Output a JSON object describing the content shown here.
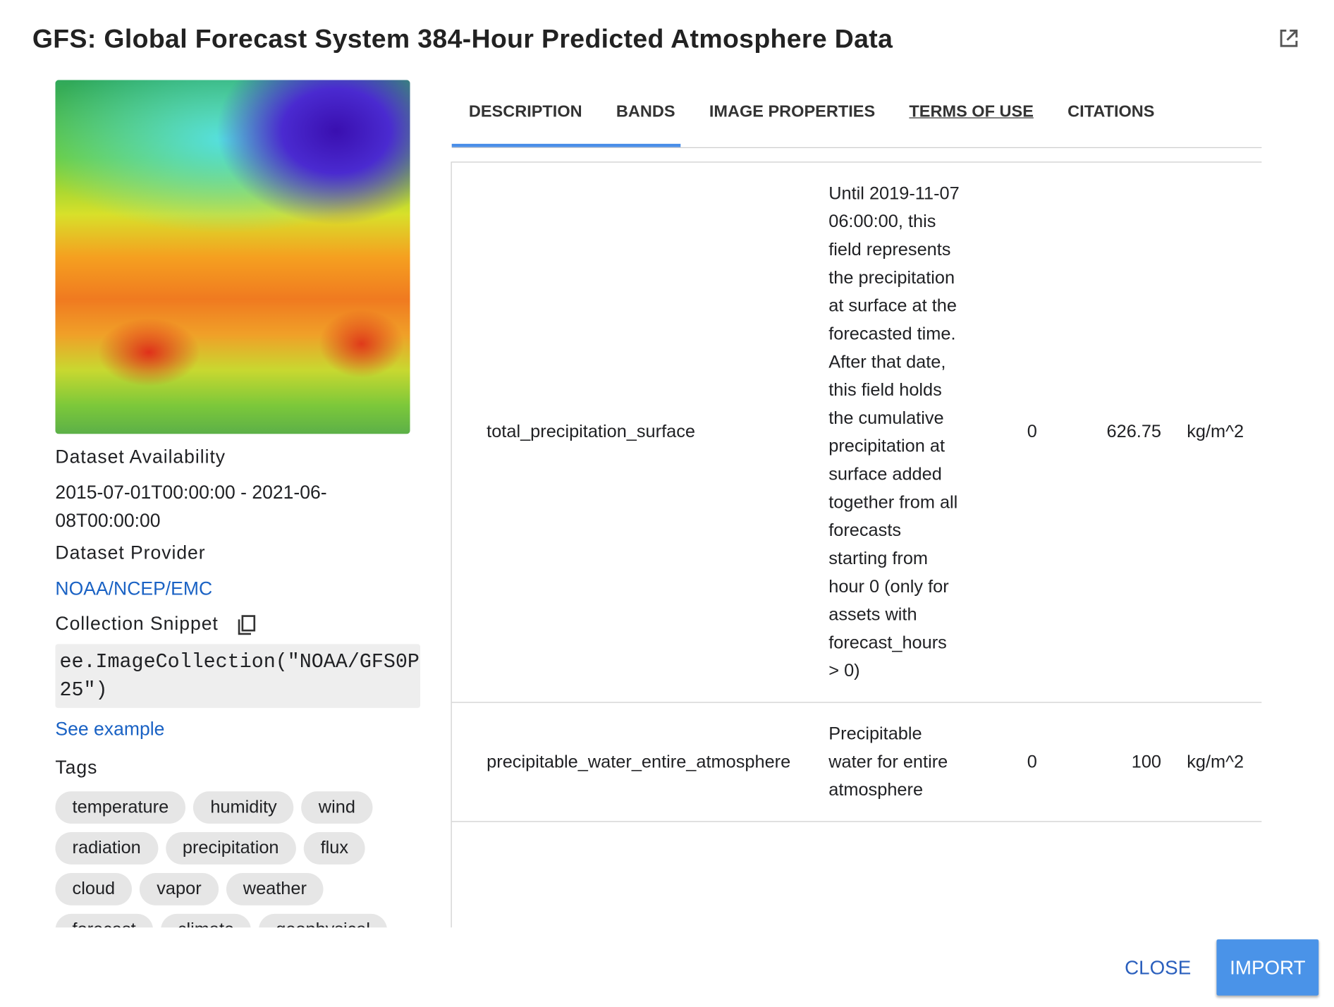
{
  "header": {
    "title": "GFS: Global Forecast System 384-Hour Predicted Atmosphere Data"
  },
  "sidebar": {
    "availability_label": "Dataset Availability",
    "availability": "2015-07-01T00:00:00 - 2021-06-08T00:00:00",
    "provider_label": "Dataset Provider",
    "provider": "NOAA/NCEP/EMC",
    "snippet_label": "Collection Snippet",
    "snippet": "ee.ImageCollection(\"NOAA/GFS0P25\")",
    "example_link": "See example",
    "tags_label": "Tags",
    "tags": [
      "temperature",
      "humidity",
      "wind",
      "radiation",
      "precipitation",
      "flux",
      "cloud",
      "vapor",
      "weather",
      "forecast",
      "climate",
      "geophysical"
    ]
  },
  "tabs": [
    "DESCRIPTION",
    "BANDS",
    "IMAGE PROPERTIES",
    "TERMS OF USE",
    "CITATIONS"
  ],
  "table": {
    "rows": [
      [
        "total_precipitation_surface",
        "Until 2019-11-07 06:00:00, this field represents the precipitation at surface at the forecasted time. After that date, this field holds the cumulative precipitation at surface added together from all forecasts starting from hour 0 (only for assets with forecast_hours > 0)",
        0,
        626.75,
        "kg/m^2"
      ],
      [
        "precipitable_water_entire_atmosphere",
        "Precipitable water for entire atmosphere",
        0,
        100,
        "kg/m^2"
      ]
    ]
  },
  "footer": {
    "close": "CLOSE",
    "import": "IMPORT"
  }
}
